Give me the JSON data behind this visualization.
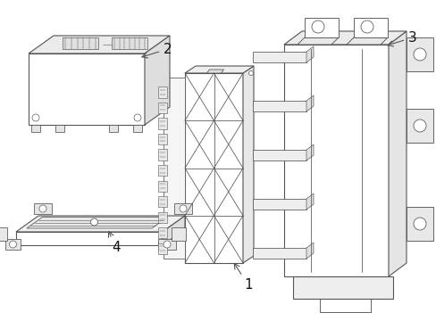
{
  "bg_color": "#ffffff",
  "line_color": "#555555",
  "line_width": 0.8,
  "fig_width": 4.89,
  "fig_height": 3.6,
  "dpi": 100
}
